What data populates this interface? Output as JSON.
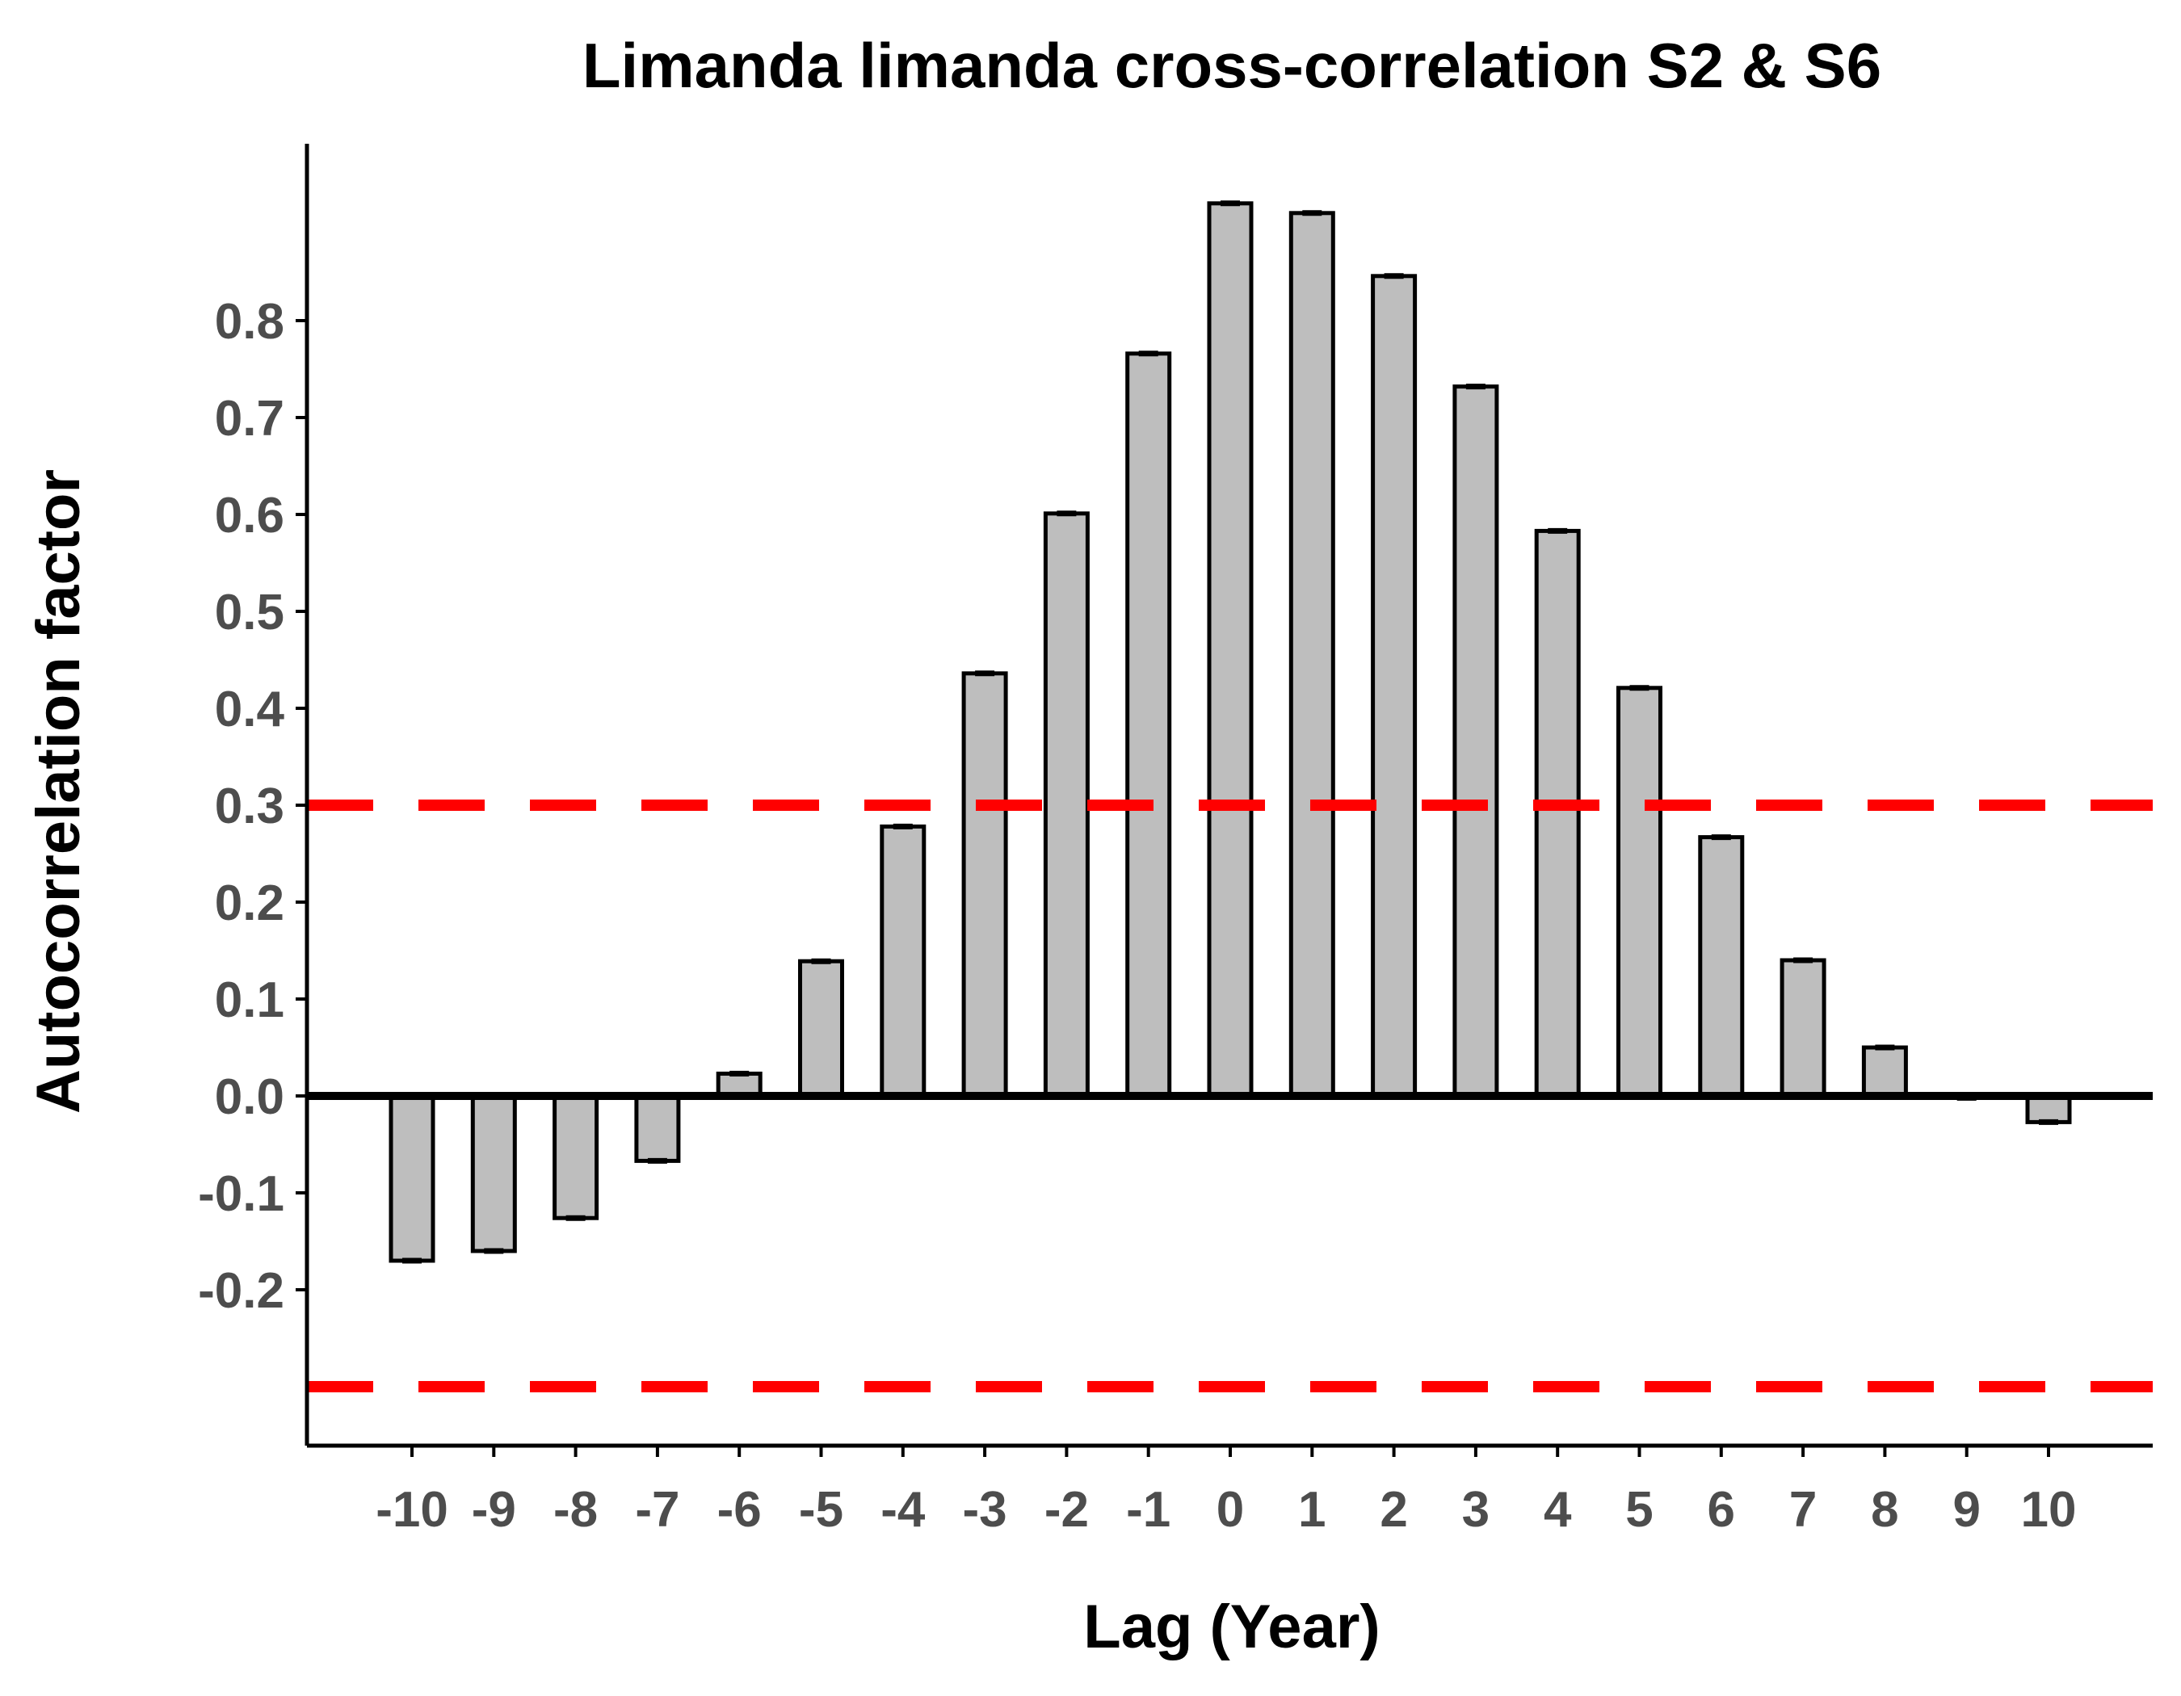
{
  "chart_data": {
    "type": "bar",
    "title": "Limanda limanda cross-correlation S2 & S6",
    "xlabel": "Lag (Year)",
    "ylabel": "Autocorrelation factor",
    "categories": [
      "-10",
      "-9",
      "-8",
      "-7",
      "-6",
      "-5",
      "-4",
      "-3",
      "-2",
      "-1",
      "0",
      "1",
      "2",
      "3",
      "4",
      "5",
      "6",
      "7",
      "8",
      "9",
      "10"
    ],
    "values": [
      -0.17,
      -0.16,
      -0.126,
      -0.067,
      0.023,
      0.139,
      0.278,
      0.436,
      0.601,
      0.766,
      0.921,
      0.911,
      0.846,
      0.732,
      0.583,
      0.421,
      0.267,
      0.14,
      0.05,
      -0.002,
      -0.027
    ],
    "yticks": [
      "0.8",
      "0.7",
      "0.6",
      "0.5",
      "0.4",
      "0.3",
      "0.2",
      "0.1",
      "0.0",
      "-0.1",
      "-0.2"
    ],
    "ytick_values": [
      0.8,
      0.7,
      0.6,
      0.5,
      0.4,
      0.3,
      0.2,
      0.1,
      0.0,
      -0.1,
      -0.2
    ],
    "ylim": [
      -0.365,
      0.98
    ],
    "threshold_lines": [
      0.3,
      -0.3
    ],
    "colors": {
      "bar_fill": "#bebebe",
      "bar_stroke": "#000000",
      "threshold": "#ff0000",
      "tick_text": "#4d4d4d",
      "axis": "#000000"
    },
    "grid": false,
    "legend": "none"
  }
}
